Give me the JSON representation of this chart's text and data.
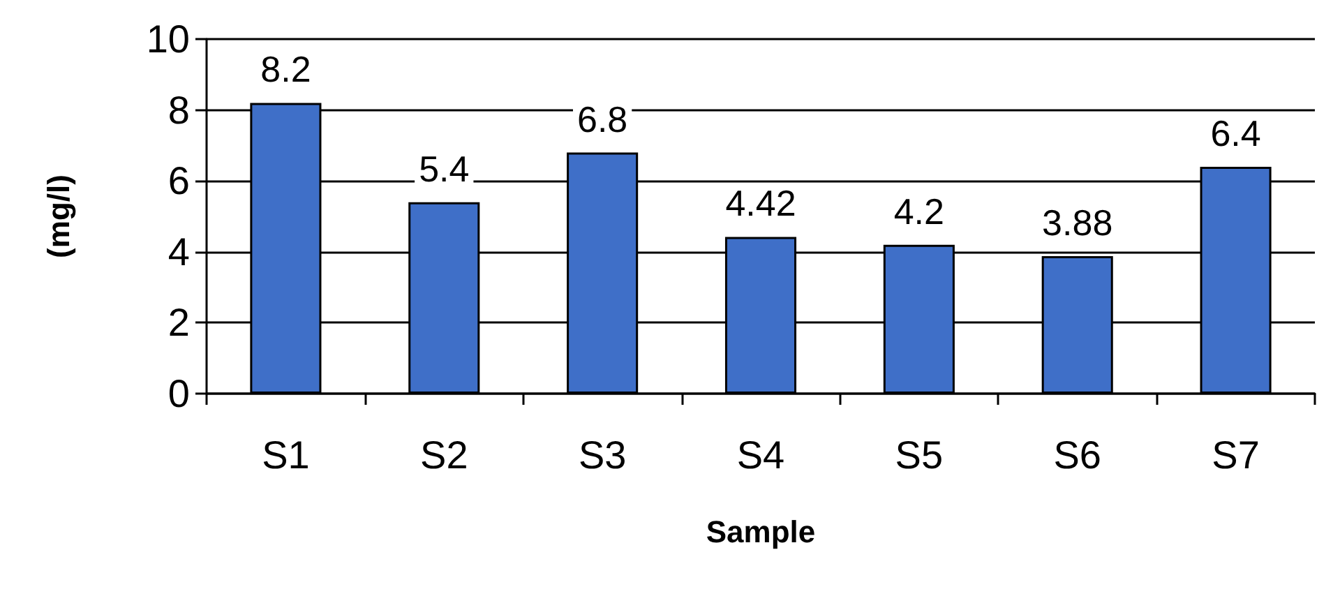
{
  "chart_data": {
    "type": "bar",
    "xlabel": "Sample",
    "ylabel": "(mg/l)",
    "categories": [
      "S1",
      "S2",
      "S3",
      "S4",
      "S5",
      "S6",
      "S7"
    ],
    "values": [
      8.2,
      5.4,
      6.8,
      4.42,
      4.2,
      3.88,
      6.4
    ],
    "color": "#3f6fc8",
    "ylim": [
      0,
      10
    ],
    "yticks": [
      0,
      2,
      4,
      6,
      8,
      10
    ],
    "grid": "y",
    "data_labels": true
  }
}
